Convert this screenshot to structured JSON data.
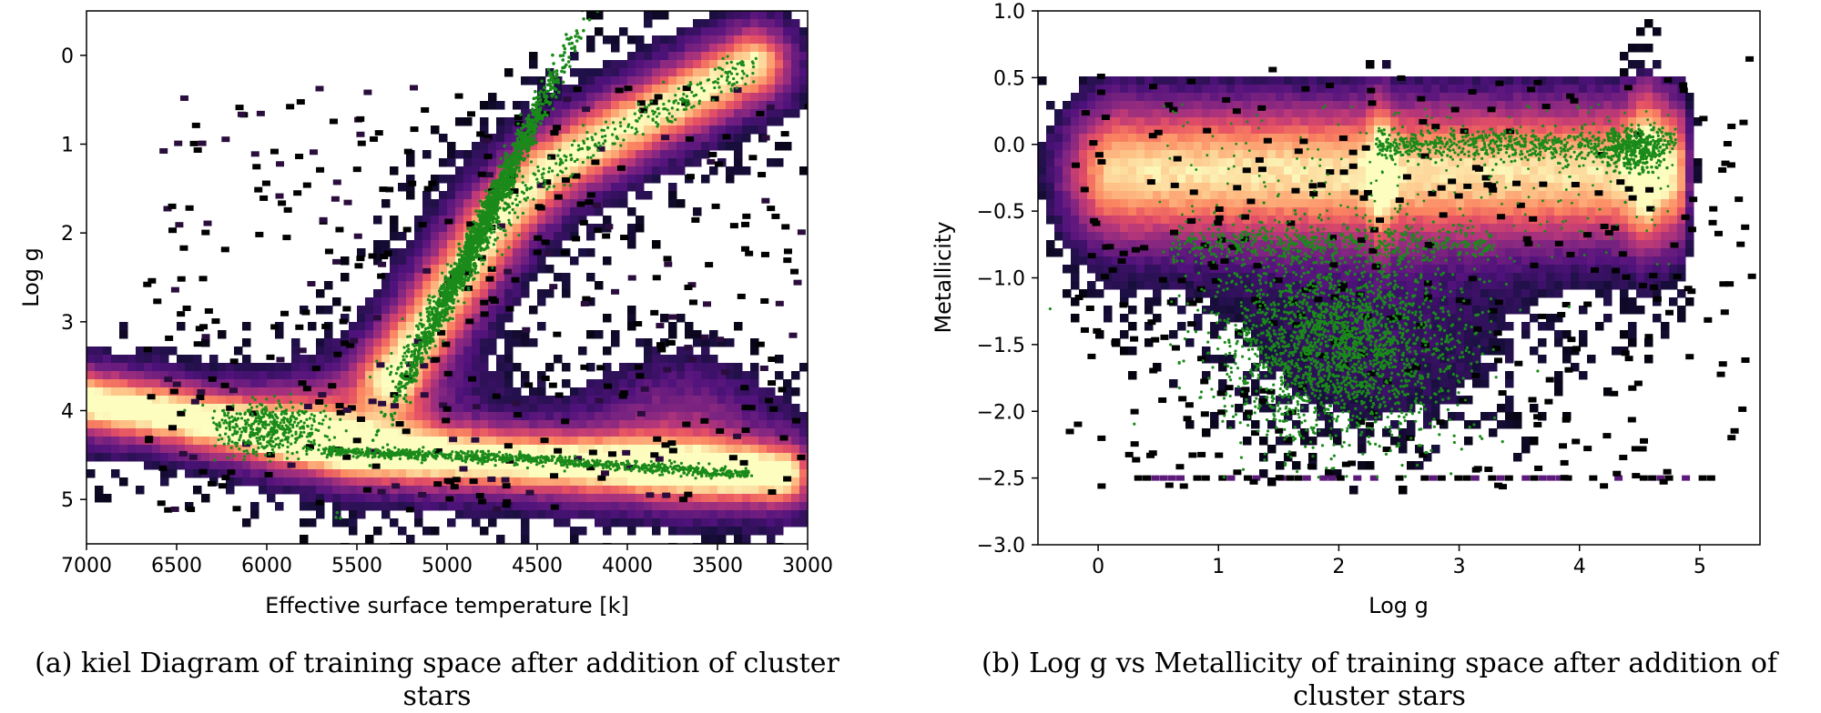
{
  "chart_data": [
    {
      "type": "heatmap",
      "subtype": "2d-histogram with scatter overlay",
      "caption": "(a) kiel Diagram of training space after addition of cluster stars",
      "xlabel": "Effective surface temperature [k]",
      "ylabel": "Log g",
      "xlim": [
        7000,
        3000
      ],
      "ylim": [
        5.5,
        -0.5
      ],
      "x_inverted": true,
      "y_inverted": true,
      "xticks": [
        7000,
        6500,
        6000,
        5500,
        5000,
        4500,
        4000,
        3500,
        3000
      ],
      "yticks": [
        0,
        1,
        2,
        3,
        4,
        5
      ],
      "colormap": "magma",
      "scatter_color": "#1a8a1a",
      "grid": false,
      "density_features": [
        {
          "name": "main sequence",
          "path": [
            [
              7000,
              3.9
            ],
            [
              6500,
              4.05
            ],
            [
              6000,
              4.25
            ],
            [
              5500,
              4.45
            ],
            [
              5000,
              4.52
            ],
            [
              4500,
              4.58
            ],
            [
              4000,
              4.62
            ],
            [
              3500,
              4.68
            ],
            [
              3150,
              4.72
            ]
          ]
        },
        {
          "name": "giant branch",
          "path": [
            [
              5300,
              3.6
            ],
            [
              5100,
              3.0
            ],
            [
              4900,
              2.4
            ],
            [
              4700,
              1.8
            ],
            [
              4450,
              1.3
            ],
            [
              4100,
              0.9
            ],
            [
              3700,
              0.5
            ],
            [
              3300,
              0.1
            ]
          ]
        }
      ],
      "scatter_features": [
        {
          "name": "cluster giants",
          "center": [
            4800,
            1.9
          ],
          "spread": [
            250,
            0.6
          ]
        },
        {
          "name": "cluster dwarfs",
          "center": [
            6000,
            4.2
          ],
          "spread": [
            150,
            0.15
          ]
        },
        {
          "name": "cluster main sequence",
          "path": [
            [
              5700,
              4.45
            ],
            [
              4500,
              4.55
            ],
            [
              3300,
              4.72
            ]
          ]
        }
      ]
    },
    {
      "type": "heatmap",
      "subtype": "2d-histogram with scatter overlay",
      "caption": "(b) Log g vs Metallicity of training space after addition of cluster stars",
      "xlabel": "Log g",
      "ylabel": "Metallicity",
      "xlim": [
        -0.5,
        5.5
      ],
      "ylim": [
        -3.0,
        1.0
      ],
      "xticks": [
        0,
        1,
        2,
        3,
        4,
        5
      ],
      "yticks": [
        1.0,
        0.5,
        0.0,
        -0.5,
        -1.0,
        -1.5,
        -2.0,
        -2.5,
        -3.0
      ],
      "yticklabels": [
        "1.0",
        "0.5",
        "0.0",
        "−0.5",
        "−1.0",
        "−1.5",
        "−2.0",
        "−2.5",
        "−3.0"
      ],
      "colormap": "magma",
      "scatter_color": "#1a8a1a",
      "grid": false,
      "density_features": [
        {
          "name": "thin disk band",
          "x_range": [
            0.2,
            4.8
          ],
          "center_y": -0.2,
          "spread_y": 0.35
        },
        {
          "name": "red clump peak",
          "x": 2.35
        },
        {
          "name": "dwarf peak",
          "x": 4.55
        }
      ],
      "scatter_features": [
        {
          "name": "metal-poor cluster stars",
          "center": [
            2.0,
            -1.5
          ],
          "spread": [
            0.5,
            0.35
          ]
        },
        {
          "name": "solar metallicity stars",
          "x_range": [
            2.3,
            4.8
          ],
          "y": 0.0
        },
        {
          "name": "intermediate metallicity",
          "x_range": [
            0.6,
            3.3
          ],
          "y": -0.75
        }
      ]
    }
  ]
}
